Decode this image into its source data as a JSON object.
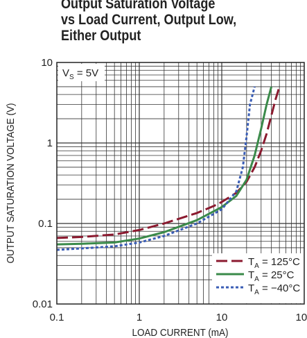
{
  "title_lines": [
    "Output Saturation Voltage",
    "vs Load Current, Output Low,",
    "Either Output"
  ],
  "chart_data": {
    "type": "line",
    "xlabel": "LOAD CURRENT (mA)",
    "ylabel": "OUTPUT SATURATION VOLTAGE (V)",
    "xscale": "log",
    "yscale": "log",
    "xlim": [
      0.1,
      100
    ],
    "ylim": [
      0.01,
      10
    ],
    "x_ticks": [
      0.1,
      1,
      10,
      100
    ],
    "x_tick_labels": [
      "0.1",
      "1",
      "10",
      "100"
    ],
    "y_ticks": [
      0.01,
      0.1,
      1,
      10
    ],
    "y_tick_labels": [
      "0.01",
      "0.1",
      "1",
      "10"
    ],
    "grid": true,
    "annotation": {
      "text": "VS = 5V",
      "main": "V",
      "sub": "S",
      "rest": " = 5V"
    },
    "legend_position": "bottom-right",
    "series": [
      {
        "name": "TA = 125°C",
        "label_sub": "A",
        "label_rest": " = 125°C",
        "color": "#8b1a2f",
        "dash": "long-dash",
        "points": [
          [
            0.1,
            0.066
          ],
          [
            0.2,
            0.068
          ],
          [
            0.5,
            0.073
          ],
          [
            1,
            0.083
          ],
          [
            2,
            0.1
          ],
          [
            5,
            0.135
          ],
          [
            8,
            0.165
          ],
          [
            10,
            0.185
          ],
          [
            15,
            0.24
          ],
          [
            20,
            0.33
          ],
          [
            25,
            0.5
          ],
          [
            30,
            0.8
          ],
          [
            35,
            1.3
          ],
          [
            40,
            2.2
          ],
          [
            45,
            3.5
          ],
          [
            50,
            5
          ]
        ]
      },
      {
        "name": "TA = 25°C",
        "label_sub": "A",
        "label_rest": " = 25°C",
        "color": "#3a8a4a",
        "dash": "solid",
        "points": [
          [
            0.1,
            0.055
          ],
          [
            0.2,
            0.056
          ],
          [
            0.5,
            0.058
          ],
          [
            1,
            0.065
          ],
          [
            2,
            0.078
          ],
          [
            5,
            0.11
          ],
          [
            10,
            0.16
          ],
          [
            15,
            0.22
          ],
          [
            20,
            0.35
          ],
          [
            25,
            0.7
          ],
          [
            30,
            1.5
          ],
          [
            35,
            3
          ],
          [
            40,
            5
          ]
        ]
      },
      {
        "name": "TA = −40°C",
        "label_sub": "A",
        "label_rest": " = −40°C",
        "color": "#3a5db5",
        "dash": "dotted",
        "points": [
          [
            0.1,
            0.047
          ],
          [
            0.2,
            0.049
          ],
          [
            0.5,
            0.052
          ],
          [
            1,
            0.058
          ],
          [
            2,
            0.07
          ],
          [
            5,
            0.1
          ],
          [
            10,
            0.15
          ],
          [
            15,
            0.25
          ],
          [
            18,
            0.5
          ],
          [
            20,
            1.2
          ],
          [
            22,
            3
          ],
          [
            25,
            5
          ]
        ]
      }
    ]
  }
}
